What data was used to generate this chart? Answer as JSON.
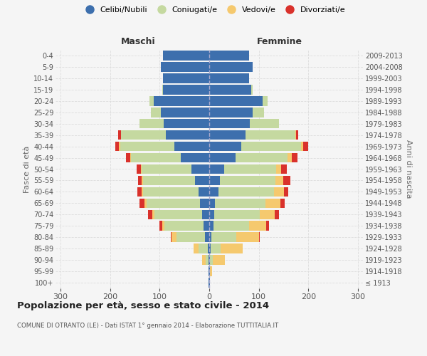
{
  "age_groups": [
    "100+",
    "95-99",
    "90-94",
    "85-89",
    "80-84",
    "75-79",
    "70-74",
    "65-69",
    "60-64",
    "55-59",
    "50-54",
    "45-49",
    "40-44",
    "35-39",
    "30-34",
    "25-29",
    "20-24",
    "15-19",
    "10-14",
    "5-9",
    "0-4"
  ],
  "birth_years": [
    "≤ 1913",
    "1914-1918",
    "1919-1923",
    "1924-1928",
    "1929-1933",
    "1934-1938",
    "1939-1943",
    "1944-1948",
    "1949-1953",
    "1954-1958",
    "1959-1963",
    "1964-1968",
    "1969-1973",
    "1974-1978",
    "1979-1983",
    "1984-1988",
    "1989-1993",
    "1994-1998",
    "1999-2003",
    "2004-2008",
    "2009-2013"
  ],
  "male_celibi": [
    1,
    1,
    2,
    3,
    8,
    12,
    15,
    18,
    22,
    28,
    36,
    58,
    70,
    88,
    92,
    98,
    112,
    93,
    93,
    98,
    93
  ],
  "male_coniugati": [
    0,
    0,
    5,
    18,
    58,
    78,
    95,
    108,
    112,
    105,
    100,
    100,
    110,
    90,
    48,
    20,
    8,
    2,
    0,
    0,
    0
  ],
  "male_vedovi": [
    0,
    1,
    8,
    10,
    10,
    5,
    5,
    4,
    3,
    3,
    2,
    2,
    2,
    0,
    0,
    0,
    0,
    0,
    0,
    0,
    0
  ],
  "male_divorziati": [
    0,
    0,
    0,
    0,
    2,
    5,
    8,
    10,
    8,
    8,
    8,
    8,
    8,
    5,
    0,
    0,
    0,
    0,
    0,
    0,
    0
  ],
  "female_celibi": [
    1,
    1,
    2,
    3,
    5,
    8,
    10,
    12,
    18,
    22,
    30,
    53,
    65,
    73,
    82,
    88,
    108,
    85,
    80,
    88,
    80
  ],
  "female_coniugati": [
    0,
    0,
    5,
    20,
    50,
    72,
    92,
    102,
    112,
    112,
    105,
    105,
    120,
    100,
    58,
    22,
    10,
    3,
    0,
    0,
    0
  ],
  "female_vedovi": [
    1,
    5,
    25,
    45,
    45,
    35,
    30,
    30,
    20,
    15,
    10,
    8,
    5,
    2,
    0,
    0,
    0,
    0,
    0,
    0,
    0
  ],
  "female_divorziati": [
    0,
    0,
    0,
    0,
    2,
    5,
    8,
    8,
    10,
    15,
    12,
    12,
    10,
    5,
    0,
    0,
    0,
    0,
    0,
    0,
    0
  ],
  "colors": {
    "celibi": "#3d6fad",
    "coniugati": "#c5d9a0",
    "vedovi": "#f5c96e",
    "divorziati": "#d9312b"
  },
  "title": "Popolazione per età, sesso e stato civile - 2014",
  "subtitle": "COMUNE DI OTRANTO (LE) - Dati ISTAT 1° gennaio 2014 - Elaborazione TUTTITALIA.IT",
  "xlabel_left": "Maschi",
  "xlabel_right": "Femmine",
  "ylabel_left": "Fasce di età",
  "ylabel_right": "Anni di nascita",
  "xlim": 310,
  "bg_color": "#f5f5f5",
  "plot_bg_color": "#f5f5f5",
  "grid_color": "#dddddd",
  "bar_height": 0.85,
  "legend_labels": [
    "Celibi/Nubili",
    "Coniugati/e",
    "Vedovi/e",
    "Divorziati/e"
  ]
}
